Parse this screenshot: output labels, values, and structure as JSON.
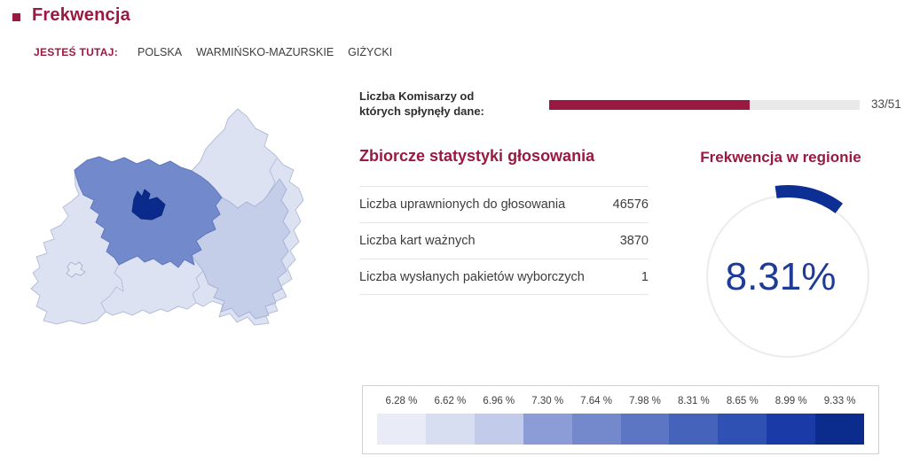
{
  "colors": {
    "accent": "#9a1941",
    "navy_arc": "#0d2e93",
    "navy_text": "#1d3b97",
    "progress_track": "#e9e9e9"
  },
  "page": {
    "title": "Frekwencja",
    "breadcrumb": {
      "label": "JESTEŚ TUTAJ:",
      "items": [
        "POLSKA",
        "WARMIŃSKO-MAZURSKIE",
        "GIŻYCKI"
      ]
    }
  },
  "commissioners": {
    "label_line1": "Liczba Komisarzy od",
    "label_line2": "których spłynęły dane:",
    "current": 33,
    "total": 51,
    "value": "33/51"
  },
  "statistics": {
    "title": "Zbiorcze statystyki głosowania",
    "rows": [
      {
        "label": "Liczba uprawnionych do głosowania",
        "value": "46576"
      },
      {
        "label": "Liczba kart ważnych",
        "value": "3870"
      },
      {
        "label": "Liczba wysłanych pakietów wyborczych",
        "value": "1"
      }
    ]
  },
  "gauge": {
    "title": "Frekwencja w regionie",
    "value": "8.31%",
    "percent": 8.31
  },
  "legend": {
    "items": [
      {
        "label": "6.28 %",
        "color": "#e9ecf7"
      },
      {
        "label": "6.62 %",
        "color": "#d8def1"
      },
      {
        "label": "6.96 %",
        "color": "#c2cbe9"
      },
      {
        "label": "7.30 %",
        "color": "#8b9cd6"
      },
      {
        "label": "7.64 %",
        "color": "#7389cc"
      },
      {
        "label": "7.98 %",
        "color": "#5c76c4"
      },
      {
        "label": "8.31 %",
        "color": "#4663bc"
      },
      {
        "label": "8.65 %",
        "color": "#2f51b3"
      },
      {
        "label": "8.99 %",
        "color": "#1a3aa8"
      },
      {
        "label": "9.33 %",
        "color": "#0b2b8d"
      }
    ]
  },
  "map": {
    "regions": [
      {
        "id": "light-silhouette",
        "color": "#dce2f1"
      },
      {
        "id": "east",
        "color": "#c5cee9"
      },
      {
        "id": "center",
        "color": "#7289cb"
      },
      {
        "id": "town",
        "color": "#0a2b8c"
      },
      {
        "id": "enclave",
        "color": "#e3e8f5"
      }
    ]
  }
}
